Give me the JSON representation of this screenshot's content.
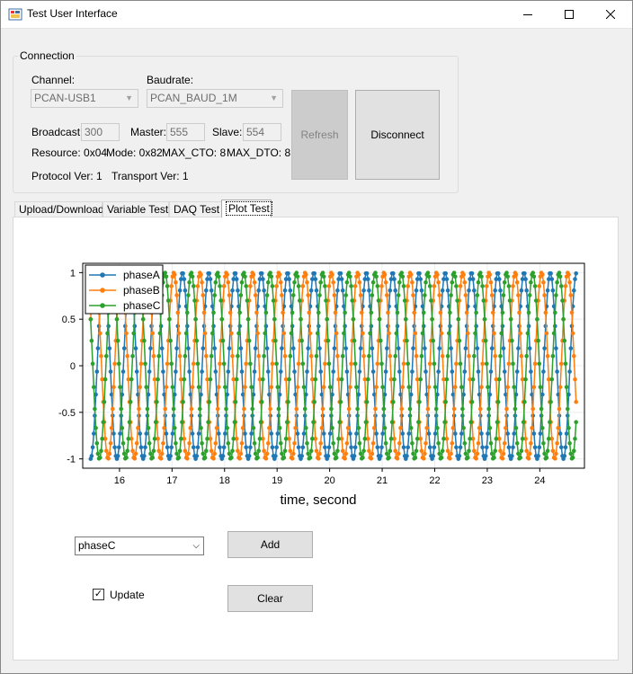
{
  "window": {
    "title": "Test User Interface",
    "minimize_icon": "minimize-icon",
    "maximize_icon": "maximize-icon",
    "close_icon": "close-icon"
  },
  "connection": {
    "group_label": "Connection",
    "channel_label": "Channel:",
    "channel_value": "PCAN-USB1",
    "baudrate_label": "Baudrate:",
    "baudrate_value": "PCAN_BAUD_1M",
    "broadcast_label": "Broadcast:",
    "broadcast_value": "300",
    "master_label": "Master:",
    "master_value": "555",
    "slave_label": "Slave:",
    "slave_value": "554",
    "resource_text": "Resource: 0x04",
    "mode_text": "Mode: 0x82",
    "max_cto_text": "MAX_CTO: 8",
    "max_dto_text": "MAX_DTO: 8",
    "protocol_text": "Protocol Ver: 1",
    "transport_text": "Transport Ver: 1",
    "refresh_label": "Refresh",
    "disconnect_label": "Disconnect"
  },
  "tabs": [
    {
      "label": "Upload/Download",
      "active": false
    },
    {
      "label": "Variable Test",
      "active": false
    },
    {
      "label": "DAQ Test",
      "active": false
    },
    {
      "label": "Plot Test",
      "active": true
    }
  ],
  "plot_controls": {
    "variable_select_value": "phaseC",
    "add_label": "Add",
    "update_label": "Update",
    "update_checked": true,
    "clear_label": "Clear"
  },
  "chart_data": {
    "type": "line",
    "xlabel": "time, second",
    "ylabel": "",
    "title": "",
    "xlim": [
      15.3,
      24.85
    ],
    "ylim": [
      -1.1,
      1.1
    ],
    "x_ticks": [
      16,
      17,
      18,
      19,
      20,
      21,
      22,
      23,
      24
    ],
    "y_ticks": [
      1,
      0.5,
      0,
      -0.5,
      -1
    ],
    "x_range": [
      15.45,
      24.7
    ],
    "frequency_hz": 2,
    "legend_position": "top-left",
    "grid": true,
    "series": [
      {
        "name": "phaseA",
        "color": "#1f77b4",
        "phase_deg": 0
      },
      {
        "name": "phaseB",
        "color": "#ff7f0e",
        "phase_deg": 120
      },
      {
        "name": "phaseC",
        "color": "#2ca02c",
        "phase_deg": 240
      }
    ]
  }
}
